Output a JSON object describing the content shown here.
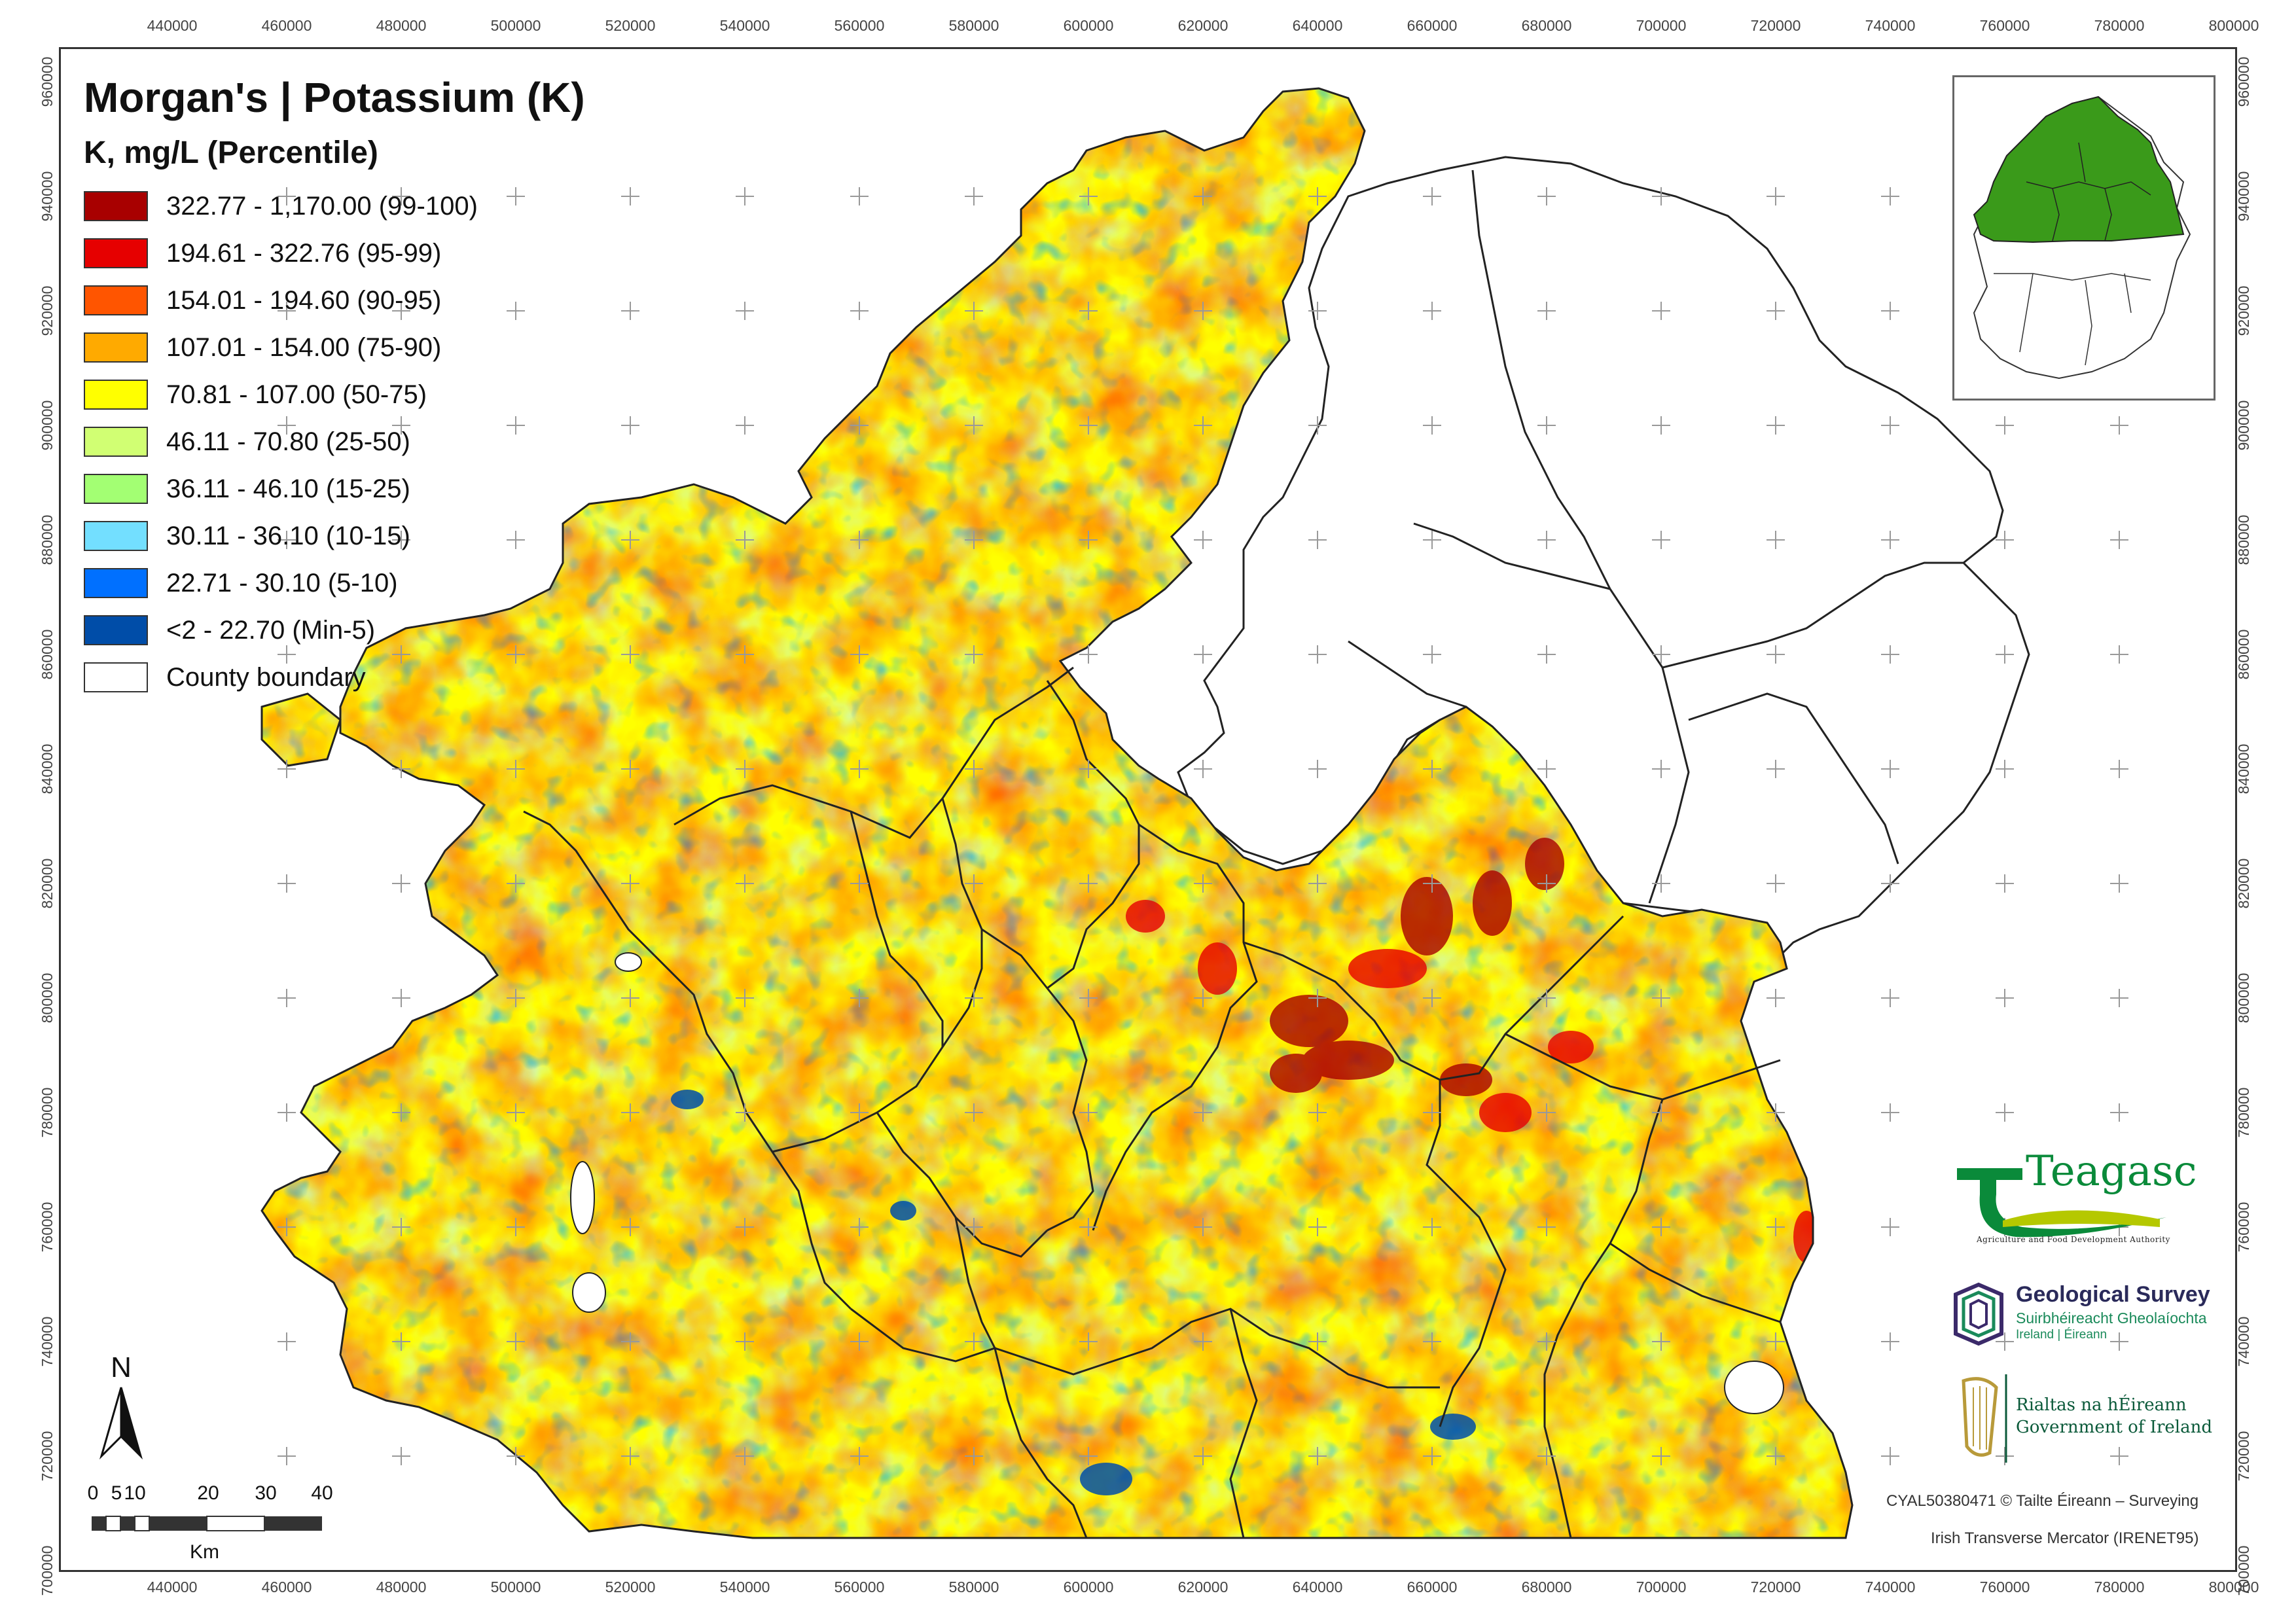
{
  "title": "Morgan's | Potassium (K)",
  "legend": {
    "subtitle": "K, mg/L (Percentile)",
    "classes": [
      {
        "label": "322.77 - 1,170.00 (99-100)",
        "color": "#a80000"
      },
      {
        "label": "194.61 - 322.76 (95-99)",
        "color": "#e60000"
      },
      {
        "label": "154.01 - 194.60 (90-95)",
        "color": "#ff5500"
      },
      {
        "label": "107.01 - 154.00 (75-90)",
        "color": "#ffaa00"
      },
      {
        "label": "70.81 - 107.00 (50-75)",
        "color": "#ffff00"
      },
      {
        "label": "46.11 - 70.80 (25-50)",
        "color": "#d1ff73"
      },
      {
        "label": "36.11 - 46.10 (15-25)",
        "color": "#a3ff73"
      },
      {
        "label": "30.11 - 36.10 (10-15)",
        "color": "#73dfff"
      },
      {
        "label": "22.71 - 30.10 (5-10)",
        "color": "#0070ff"
      },
      {
        "label": "<2 - 22.70 (Min-5)",
        "color": "#004da8"
      }
    ],
    "boundary_label": "County boundary"
  },
  "axes": {
    "x_ticks": [
      "440000",
      "460000",
      "480000",
      "500000",
      "520000",
      "540000",
      "560000",
      "580000",
      "600000",
      "620000",
      "640000",
      "660000",
      "680000",
      "700000",
      "720000",
      "740000",
      "760000",
      "780000",
      "800000"
    ],
    "y_ticks": [
      "960000",
      "940000",
      "920000",
      "900000",
      "880000",
      "860000",
      "840000",
      "820000",
      "800000",
      "780000",
      "760000",
      "740000",
      "720000",
      "700000"
    ]
  },
  "north_arrow": {
    "letter": "N"
  },
  "scale_bar": {
    "ticks": [
      "0",
      "5",
      "10",
      "20",
      "30",
      "40"
    ],
    "unit": "Km"
  },
  "logos": {
    "teagasc": {
      "name": "Teagasc",
      "tagline": "Agriculture and Food Development Authority"
    },
    "gsi": {
      "name": "Geological Survey",
      "irish": "Suirbhéireacht Gheolaíochta",
      "sub": "Ireland | Éireann"
    },
    "gov": {
      "irish": "Rialtas na hÉireann",
      "english": "Government of Ireland"
    }
  },
  "copyright": "CYAL50380471 © Tailte Éireann – Surveying",
  "projection": "Irish Transverse Mercator (IRENET95)",
  "colors": {
    "inset_fill": "#3a9a1a",
    "frame": "#333333",
    "county_line": "#222222",
    "teagasc_green": "#0a8a3a"
  }
}
